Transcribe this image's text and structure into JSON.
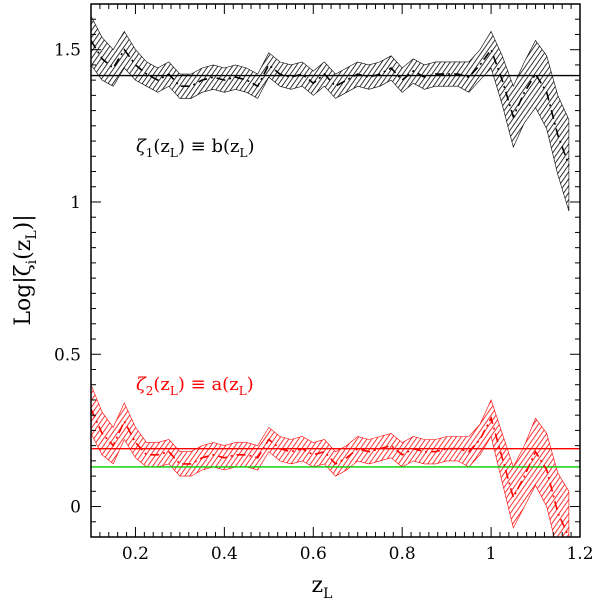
{
  "chart_data": {
    "type": "line",
    "title": "",
    "xlabel_main": "z",
    "xlabel_sub": "L",
    "ylabel_main": "Log|ζ",
    "ylabel_sub": "i",
    "ylabel_mid": "(z",
    "ylabel_sub2": "L",
    "ylabel_end": ")|",
    "xlim": [
      0.1,
      1.2
    ],
    "ylim": [
      -0.1,
      1.65
    ],
    "xticks": [
      0.2,
      0.4,
      0.6,
      0.8,
      1,
      1.2
    ],
    "xtick_labels": [
      "0.2",
      "0.4",
      "0.6",
      "0.8",
      "1",
      "1.2"
    ],
    "yticks": [
      0,
      0.5,
      1,
      1.5
    ],
    "ytick_labels": [
      "0",
      "0.5",
      "1",
      "1.5"
    ],
    "annotations": [
      {
        "id": "zeta1",
        "color": "#000000",
        "parts": [
          "ζ",
          "1",
          "(z",
          "L",
          ")  ≡  b(z",
          "L",
          ")"
        ]
      },
      {
        "id": "zeta2",
        "color": "#ff0000",
        "parts": [
          "ζ",
          "2",
          "(z",
          "L",
          ")  ≡  a(z",
          "L",
          ")"
        ]
      }
    ],
    "x": [
      0.1,
      0.125,
      0.15,
      0.175,
      0.2,
      0.225,
      0.25,
      0.275,
      0.3,
      0.325,
      0.35,
      0.375,
      0.4,
      0.425,
      0.45,
      0.475,
      0.5,
      0.525,
      0.55,
      0.575,
      0.6,
      0.625,
      0.65,
      0.675,
      0.7,
      0.725,
      0.75,
      0.775,
      0.8,
      0.825,
      0.85,
      0.875,
      0.9,
      0.925,
      0.95,
      0.975,
      1.0,
      1.025,
      1.05,
      1.075,
      1.1,
      1.125,
      1.15,
      1.175
    ],
    "series": [
      {
        "color": "#000000",
        "center": [
          1.53,
          1.47,
          1.44,
          1.5,
          1.45,
          1.42,
          1.4,
          1.42,
          1.38,
          1.38,
          1.4,
          1.41,
          1.4,
          1.41,
          1.4,
          1.38,
          1.45,
          1.42,
          1.41,
          1.42,
          1.39,
          1.42,
          1.38,
          1.4,
          1.42,
          1.41,
          1.42,
          1.44,
          1.4,
          1.43,
          1.41,
          1.42,
          1.42,
          1.42,
          1.41,
          1.45,
          1.5,
          1.4,
          1.28,
          1.36,
          1.42,
          1.36,
          1.22,
          1.12
        ],
        "halfwidth": [
          0.08,
          0.07,
          0.06,
          0.06,
          0.05,
          0.04,
          0.04,
          0.04,
          0.04,
          0.04,
          0.04,
          0.04,
          0.04,
          0.04,
          0.04,
          0.04,
          0.04,
          0.04,
          0.04,
          0.04,
          0.04,
          0.04,
          0.04,
          0.04,
          0.04,
          0.04,
          0.04,
          0.04,
          0.04,
          0.04,
          0.04,
          0.04,
          0.04,
          0.04,
          0.05,
          0.05,
          0.06,
          0.08,
          0.1,
          0.1,
          0.11,
          0.12,
          0.13,
          0.15
        ],
        "reference": 1.415
      },
      {
        "color": "#ff0000",
        "center": [
          0.32,
          0.24,
          0.2,
          0.28,
          0.21,
          0.17,
          0.17,
          0.18,
          0.14,
          0.14,
          0.16,
          0.17,
          0.16,
          0.17,
          0.17,
          0.16,
          0.22,
          0.19,
          0.18,
          0.19,
          0.17,
          0.18,
          0.14,
          0.16,
          0.19,
          0.18,
          0.19,
          0.2,
          0.17,
          0.19,
          0.18,
          0.18,
          0.19,
          0.19,
          0.18,
          0.22,
          0.29,
          0.16,
          0.03,
          0.1,
          0.18,
          0.12,
          -0.02,
          -0.1
        ],
        "halfwidth": [
          0.08,
          0.07,
          0.06,
          0.06,
          0.05,
          0.04,
          0.04,
          0.04,
          0.04,
          0.04,
          0.04,
          0.04,
          0.04,
          0.04,
          0.04,
          0.04,
          0.04,
          0.04,
          0.04,
          0.04,
          0.04,
          0.04,
          0.04,
          0.04,
          0.04,
          0.04,
          0.04,
          0.04,
          0.04,
          0.04,
          0.04,
          0.04,
          0.04,
          0.04,
          0.05,
          0.05,
          0.06,
          0.08,
          0.1,
          0.1,
          0.11,
          0.12,
          0.13,
          0.15
        ],
        "reference": 0.19
      }
    ],
    "reference_lines": [
      {
        "color": "#000000",
        "y": 1.415
      },
      {
        "color": "#ff0000",
        "y": 0.19
      },
      {
        "color": "#00cc00",
        "y": 0.13
      }
    ],
    "grid": false,
    "legend": "none"
  }
}
